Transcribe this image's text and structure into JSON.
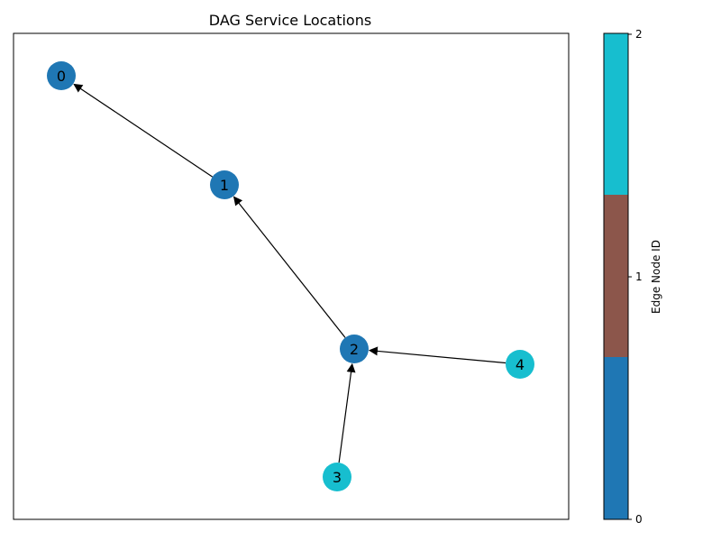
{
  "title": "DAG Service Locations",
  "colorbar": {
    "label": "Edge Node ID",
    "ticks": [
      "0",
      "1",
      "2"
    ],
    "colors": [
      "#1f77b4",
      "#8c564b",
      "#17becf"
    ]
  },
  "nodes": [
    {
      "id": "0",
      "edge_node": 0
    },
    {
      "id": "1",
      "edge_node": 0
    },
    {
      "id": "2",
      "edge_node": 0
    },
    {
      "id": "3",
      "edge_node": 2
    },
    {
      "id": "4",
      "edge_node": 2
    }
  ],
  "edges": [
    {
      "from": "1",
      "to": "0"
    },
    {
      "from": "2",
      "to": "1"
    },
    {
      "from": "3",
      "to": "2"
    },
    {
      "from": "4",
      "to": "2"
    }
  ]
}
